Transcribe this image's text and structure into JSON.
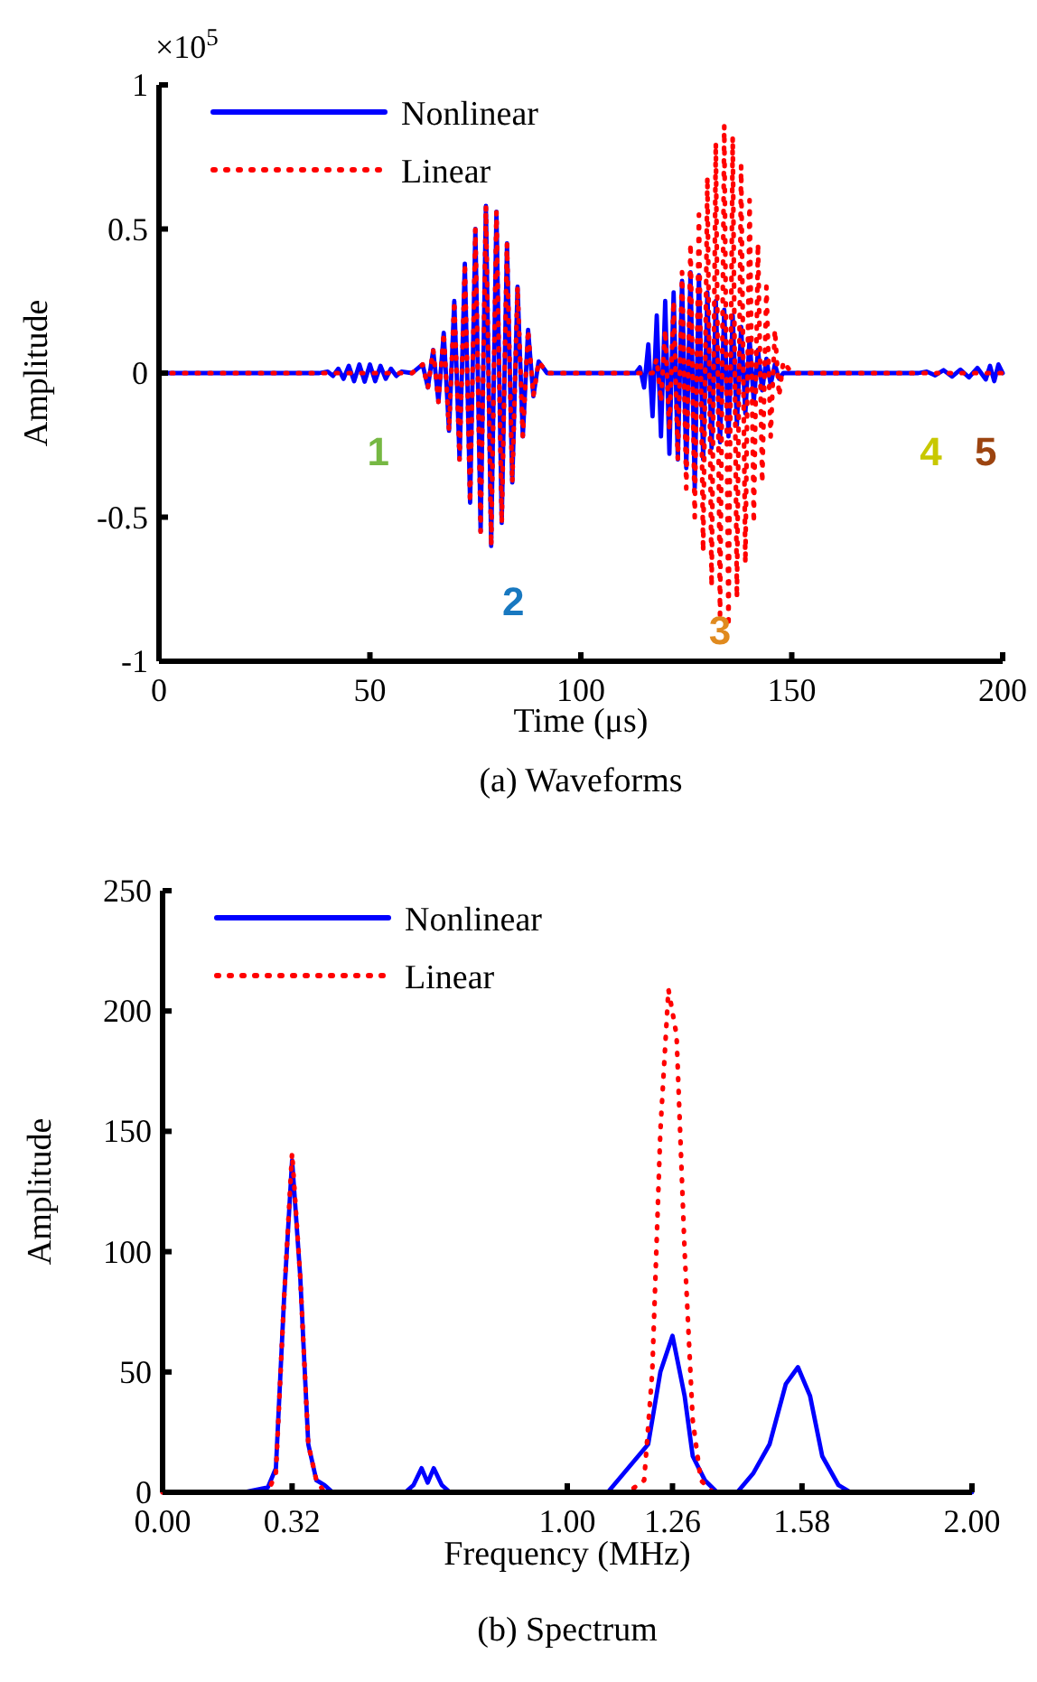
{
  "chart_data": [
    {
      "type": "line",
      "title": "(a) Waveforms",
      "xlabel": "Time (μs)",
      "ylabel": "Amplitude",
      "xlim": [
        0,
        200
      ],
      "ylim": [
        -1,
        1
      ],
      "xticks": [
        0,
        50,
        100,
        150,
        200
      ],
      "yticks": [
        -1,
        -0.5,
        0,
        0.5,
        1
      ],
      "legend": "top left",
      "annotations": [
        "×10$^{5}$",
        "1",
        "2",
        "3",
        "4",
        "5"
      ],
      "series": [
        {
          "name": "Nonlinear",
          "color": "#0000ff",
          "line_style": "solid",
          "x": [
            0,
            38,
            40,
            41.25,
            42.5,
            43.75,
            45,
            46.25,
            47.5,
            48.75,
            50,
            51.25,
            52.5,
            53.75,
            55,
            56.25,
            57.5,
            60,
            62.5,
            63.75,
            65,
            66.25,
            67.5,
            68.75,
            70,
            71.25,
            72.5,
            73.75,
            75,
            76.25,
            77.5,
            78.75,
            80,
            81.25,
            82.5,
            83.75,
            85,
            86.25,
            87.5,
            88.75,
            90,
            92,
            113,
            114,
            115,
            116,
            117,
            118,
            119,
            120,
            121,
            122,
            123,
            124,
            125,
            126,
            127,
            128,
            129,
            130,
            131,
            132,
            133,
            134,
            135,
            136,
            137,
            138,
            139,
            140,
            141,
            142,
            143,
            144,
            145,
            146,
            147,
            148,
            150,
            180,
            182,
            184,
            186,
            188,
            190,
            192,
            194,
            196,
            197,
            198,
            199,
            200
          ],
          "values": [
            0,
            0,
            0.005,
            -0.01,
            0.015,
            -0.02,
            0.025,
            -0.028,
            0.03,
            -0.03,
            0.03,
            -0.028,
            0.025,
            -0.02,
            0.015,
            -0.01,
            0.005,
            0,
            0.03,
            -0.05,
            0.08,
            -0.1,
            0.14,
            -0.2,
            0.25,
            -0.3,
            0.38,
            -0.45,
            0.5,
            -0.55,
            0.58,
            -0.6,
            0.56,
            -0.52,
            0.45,
            -0.38,
            0.3,
            -0.22,
            0.15,
            -0.08,
            0.04,
            0,
            0,
            0.02,
            -0.05,
            0.1,
            -0.15,
            0.2,
            -0.22,
            0.25,
            -0.28,
            0.28,
            -0.3,
            0.32,
            -0.33,
            0.35,
            -0.4,
            0.34,
            -0.3,
            0.28,
            -0.26,
            0.25,
            -0.24,
            0.22,
            -0.22,
            0.2,
            -0.18,
            0.16,
            -0.14,
            0.12,
            -0.1,
            0.08,
            -0.06,
            0.05,
            -0.04,
            0.03,
            -0.02,
            0,
            0,
            0,
            0.005,
            -0.008,
            0.01,
            -0.012,
            0.012,
            -0.015,
            0.018,
            -0.022,
            0.025,
            -0.028,
            0.03,
            0
          ]
        },
        {
          "name": "Linear",
          "color": "#ff0000",
          "line_style": "dotted",
          "x": [
            0,
            60,
            62.5,
            63.75,
            65,
            66.25,
            67.5,
            68.75,
            70,
            71.25,
            72.5,
            73.75,
            75,
            76.25,
            77.5,
            78.75,
            80,
            81.25,
            82.5,
            83.75,
            85,
            86.25,
            87.5,
            88.75,
            90,
            92,
            117,
            118,
            119,
            120,
            121,
            122,
            123,
            124,
            125,
            126,
            127,
            128,
            129,
            130,
            131,
            132,
            133,
            134,
            135,
            136,
            137,
            138,
            139,
            140,
            141,
            142,
            143,
            144,
            145,
            146,
            147,
            148,
            150,
            200
          ],
          "values": [
            0,
            0,
            0.03,
            -0.05,
            0.08,
            -0.1,
            0.14,
            -0.2,
            0.25,
            -0.3,
            0.38,
            -0.45,
            0.5,
            -0.55,
            0.58,
            -0.6,
            0.56,
            -0.52,
            0.45,
            -0.38,
            0.3,
            -0.22,
            0.15,
            -0.08,
            0.04,
            0,
            0,
            0.05,
            -0.1,
            0.15,
            -0.2,
            0.25,
            -0.3,
            0.35,
            -0.4,
            0.45,
            -0.5,
            0.55,
            -0.62,
            0.68,
            -0.74,
            0.8,
            -0.84,
            0.86,
            -0.88,
            0.82,
            -0.78,
            0.72,
            -0.66,
            0.6,
            -0.52,
            0.45,
            -0.38,
            0.3,
            -0.22,
            0.15,
            -0.08,
            0.04,
            0,
            0
          ]
        }
      ]
    },
    {
      "type": "line",
      "title": "(b) Spectrum",
      "xlabel": "Frequency (MHz)",
      "ylabel": "Amplitude",
      "xlim": [
        0,
        2
      ],
      "ylim": [
        0,
        250
      ],
      "xticks": [
        {
          "value": 0,
          "label": "0.00"
        },
        {
          "value": 0.32,
          "label": "0.32"
        },
        {
          "value": 1,
          "label": "1.00"
        },
        {
          "value": 1.26,
          "label": "1.26"
        },
        {
          "value": 1.58,
          "label": "1.58"
        },
        {
          "value": 2,
          "label": "2.00"
        }
      ],
      "yticks": [
        0,
        50,
        100,
        150,
        200,
        250
      ],
      "legend": "top left",
      "series": [
        {
          "name": "Nonlinear",
          "color": "#0000ff",
          "line_style": "solid",
          "x": [
            0,
            0.2,
            0.26,
            0.28,
            0.3,
            0.32,
            0.34,
            0.36,
            0.38,
            0.4,
            0.42,
            0.6,
            0.62,
            0.64,
            0.655,
            0.67,
            0.69,
            0.71,
            1.1,
            1.14,
            1.2,
            1.23,
            1.26,
            1.29,
            1.31,
            1.34,
            1.37,
            1.42,
            1.46,
            1.5,
            1.54,
            1.57,
            1.6,
            1.63,
            1.67,
            1.7,
            2
          ],
          "values": [
            0,
            0,
            2,
            10,
            80,
            138,
            90,
            20,
            5,
            3,
            0,
            0,
            3,
            10,
            4,
            10,
            3,
            0,
            0,
            8,
            20,
            50,
            65,
            40,
            15,
            5,
            0,
            0,
            8,
            20,
            45,
            52,
            40,
            15,
            3,
            0,
            0
          ]
        },
        {
          "name": "Linear",
          "color": "#ff0000",
          "line_style": "dotted",
          "x": [
            0,
            0.26,
            0.28,
            0.3,
            0.32,
            0.34,
            0.36,
            0.38,
            0.4,
            1.15,
            1.19,
            1.21,
            1.23,
            1.25,
            1.27,
            1.29,
            1.31,
            1.33,
            1.36,
            2
          ],
          "values": [
            0,
            0,
            8,
            80,
            141,
            90,
            20,
            5,
            0,
            0,
            5,
            50,
            150,
            209,
            190,
            100,
            30,
            5,
            0,
            0
          ]
        }
      ]
    }
  ]
}
